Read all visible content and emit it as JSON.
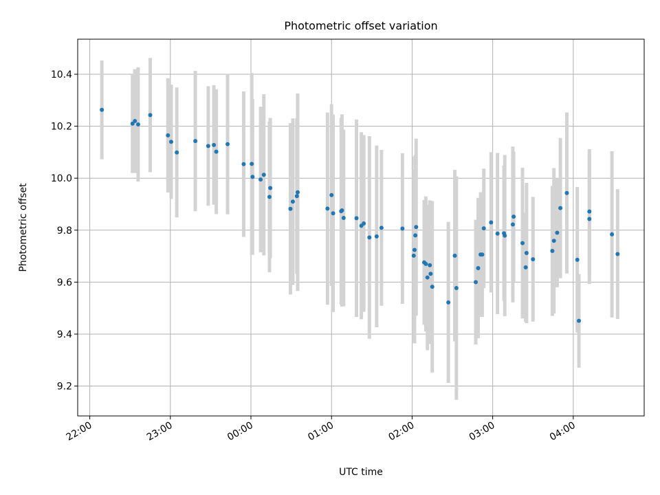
{
  "chart_data": {
    "type": "scatter",
    "title": "Photometric offset variation",
    "xlabel": "UTC time",
    "ylabel": "Photometric offset",
    "xlim": [
      21.85,
      28.88
    ],
    "ylim": [
      9.085,
      10.535
    ],
    "grid": true,
    "x_ticks": [
      {
        "value": 22,
        "label": "22:00"
      },
      {
        "value": 23,
        "label": "23:00"
      },
      {
        "value": 24,
        "label": "00:00"
      },
      {
        "value": 25,
        "label": "01:00"
      },
      {
        "value": 26,
        "label": "02:00"
      },
      {
        "value": 27,
        "label": "03:00"
      },
      {
        "value": 28,
        "label": "04:00"
      }
    ],
    "y_ticks": [
      {
        "value": 9.2,
        "label": "9.2"
      },
      {
        "value": 9.4,
        "label": "9.4"
      },
      {
        "value": 9.6,
        "label": "9.6"
      },
      {
        "value": 9.8,
        "label": "9.8"
      },
      {
        "value": 10.0,
        "label": "10.0"
      },
      {
        "value": 10.2,
        "label": "10.2"
      },
      {
        "value": 10.4,
        "label": "10.4"
      }
    ],
    "series": [
      {
        "name": "Photometric offset",
        "marker_color": "#1f77b4",
        "errorbar_color": "#d3d3d3",
        "points": [
          [
            22.15,
            10.263,
            0.19
          ],
          [
            22.53,
            10.21,
            0.19
          ],
          [
            22.56,
            10.22,
            0.2
          ],
          [
            22.6,
            10.207,
            0.22
          ],
          [
            22.75,
            10.243,
            0.22
          ],
          [
            22.97,
            10.165,
            0.22
          ],
          [
            23.01,
            10.14,
            0.22
          ],
          [
            23.08,
            10.099,
            0.25
          ],
          [
            23.31,
            10.143,
            0.27
          ],
          [
            23.47,
            10.124,
            0.23
          ],
          [
            23.54,
            10.128,
            0.23
          ],
          [
            23.57,
            10.102,
            0.24
          ],
          [
            23.71,
            10.131,
            0.27
          ],
          [
            23.91,
            10.054,
            0.28
          ],
          [
            24.01,
            10.055,
            0.35
          ],
          [
            24.02,
            10.005,
            0.3
          ],
          [
            24.12,
            9.995,
            0.28
          ],
          [
            24.16,
            10.013,
            0.31
          ],
          [
            24.23,
            9.928,
            0.29
          ],
          [
            24.24,
            9.962,
            0.27
          ],
          [
            24.49,
            9.882,
            0.33
          ],
          [
            24.52,
            9.91,
            0.32
          ],
          [
            24.57,
            9.931,
            0.3
          ],
          [
            24.58,
            9.946,
            0.38
          ],
          [
            24.95,
            9.883,
            0.37
          ],
          [
            25.0,
            9.935,
            0.35
          ],
          [
            25.02,
            9.865,
            0.38
          ],
          [
            25.12,
            9.873,
            0.36
          ],
          [
            25.13,
            9.876,
            0.37
          ],
          [
            25.15,
            9.847,
            0.34
          ],
          [
            25.31,
            9.846,
            0.38
          ],
          [
            25.37,
            9.817,
            0.36
          ],
          [
            25.4,
            9.826,
            0.34
          ],
          [
            25.47,
            9.772,
            0.39
          ],
          [
            25.56,
            9.776,
            0.35
          ],
          [
            25.62,
            9.809,
            0.3
          ],
          [
            25.88,
            9.806,
            0.29
          ],
          [
            26.02,
            9.702,
            0.33
          ],
          [
            26.03,
            9.724,
            0.36
          ],
          [
            26.04,
            9.78,
            0.31
          ],
          [
            26.05,
            9.812,
            0.34
          ],
          [
            26.15,
            9.676,
            0.24
          ],
          [
            26.17,
            9.67,
            0.26
          ],
          [
            26.19,
            9.618,
            0.28
          ],
          [
            26.22,
            9.665,
            0.25
          ],
          [
            26.23,
            9.632,
            0.27
          ],
          [
            26.25,
            9.582,
            0.33
          ],
          [
            26.45,
            9.522,
            0.31
          ],
          [
            26.53,
            9.702,
            0.33
          ],
          [
            26.55,
            9.577,
            0.43
          ],
          [
            26.79,
            9.6,
            0.24
          ],
          [
            26.82,
            9.654,
            0.27
          ],
          [
            26.85,
            9.706,
            0.24
          ],
          [
            26.87,
            9.706,
            0.24
          ],
          [
            26.89,
            9.807,
            0.23
          ],
          [
            26.98,
            9.83,
            0.27
          ],
          [
            27.06,
            9.787,
            0.31
          ],
          [
            27.14,
            9.788,
            0.26
          ],
          [
            27.15,
            9.779,
            0.31
          ],
          [
            27.25,
            9.822,
            0.3
          ],
          [
            27.26,
            9.852,
            0.25
          ],
          [
            27.37,
            9.75,
            0.29
          ],
          [
            27.41,
            9.657,
            0.21
          ],
          [
            27.42,
            9.712,
            0.27
          ],
          [
            27.5,
            9.688,
            0.24
          ],
          [
            27.74,
            9.72,
            0.25
          ],
          [
            27.76,
            9.759,
            0.28
          ],
          [
            27.8,
            9.79,
            0.21
          ],
          [
            27.84,
            9.885,
            0.27
          ],
          [
            27.92,
            9.943,
            0.31
          ],
          [
            28.05,
            9.686,
            0.28
          ],
          [
            28.07,
            9.451,
            0.18
          ],
          [
            28.2,
            9.872,
            0.24
          ],
          [
            28.2,
            9.843,
            0.25
          ],
          [
            28.48,
            9.784,
            0.32
          ],
          [
            28.55,
            9.708,
            0.25
          ]
        ]
      }
    ]
  }
}
